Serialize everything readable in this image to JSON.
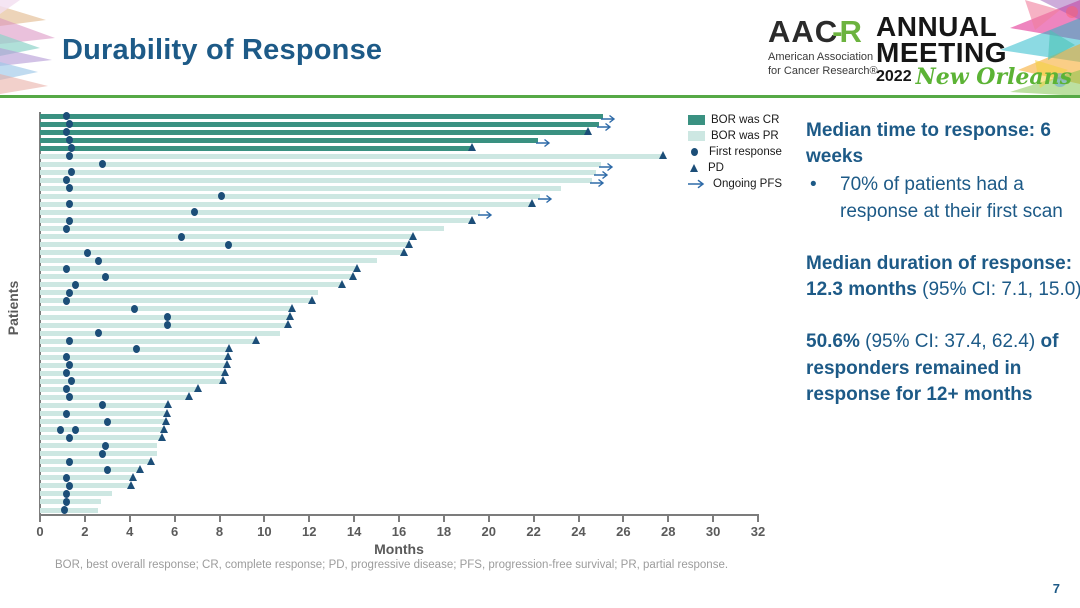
{
  "slide": {
    "title": "Durability of Response",
    "page_number": "7",
    "footnote": "BOR, best overall response; CR, complete response; PD, progressive disease; PFS, progression-free survival; PR, partial response."
  },
  "logo": {
    "aacr_black": "AAC",
    "aacr_dash": "-",
    "aacr_green": "R",
    "subtitle_line1": "American Association",
    "subtitle_line2": "for Cancer Research®",
    "annual": "ANNUAL",
    "meeting": "MEETING",
    "year": "2022",
    "city": "New Orleans"
  },
  "legend": {
    "items": [
      {
        "label": "BOR was CR",
        "marker": "swatch-cr"
      },
      {
        "label": "BOR was PR",
        "marker": "swatch-pr"
      },
      {
        "label": "First response",
        "marker": "dot"
      },
      {
        "label": "PD",
        "marker": "triangle"
      },
      {
        "label": "Ongoing PFS",
        "marker": "arrow"
      }
    ]
  },
  "stats": {
    "p1_bold": "Median time to response: 6 weeks",
    "bullet_glyph": "•",
    "bullet_text": "70% of patients had a response at their first scan",
    "p2_bold": "Median duration of response: 12.3 months ",
    "p2_normal": "(95% CI: 7.1, 15.0)",
    "p3_bold_pct": "50.6%",
    "p3_normal": " (95% CI: 37.4, 62.4) ",
    "p3_bold_rest": "of responders remained in response for 12+ months"
  },
  "chart_data": {
    "type": "bar",
    "orientation": "horizontal-swimmer",
    "title": "",
    "xlabel": "Months",
    "ylabel": "Patients",
    "xlim": [
      0,
      32
    ],
    "xticks": [
      0,
      2,
      4,
      6,
      8,
      10,
      12,
      14,
      16,
      18,
      20,
      22,
      24,
      26,
      28,
      30,
      32
    ],
    "grid": false,
    "legend_position": "top-right",
    "colors": {
      "cr_bar": "#3a9181",
      "pr_bar": "#cde7e2",
      "marker": "#1c4e78",
      "arrow": "#2f6ba8",
      "axis": "#7c7c7c"
    },
    "marker_meanings": {
      "dot": "First response",
      "pd": "PD (progressive disease)",
      "arrow": "Ongoing PFS"
    },
    "patients": [
      {
        "bor": "CR",
        "months": 25.1,
        "end": "arrow",
        "first_response": [
          1.2
        ]
      },
      {
        "bor": "CR",
        "months": 24.9,
        "end": "arrow",
        "first_response": [
          1.3
        ]
      },
      {
        "bor": "CR",
        "months": 24.4,
        "end": "pd",
        "first_response": [
          1.2
        ]
      },
      {
        "bor": "CR",
        "months": 22.2,
        "end": "arrow",
        "first_response": [
          1.3
        ]
      },
      {
        "bor": "CR",
        "months": 19.2,
        "end": "pd",
        "first_response": [
          1.4
        ]
      },
      {
        "bor": "PR",
        "months": 27.7,
        "end": "pd",
        "first_response": [
          1.3
        ]
      },
      {
        "bor": "PR",
        "months": 25.0,
        "end": "arrow",
        "first_response": [
          2.8
        ]
      },
      {
        "bor": "PR",
        "months": 24.8,
        "end": "arrow",
        "first_response": [
          1.4
        ]
      },
      {
        "bor": "PR",
        "months": 24.6,
        "end": "arrow",
        "first_response": [
          1.2
        ]
      },
      {
        "bor": "PR",
        "months": 23.2,
        "end": "none",
        "first_response": [
          1.3
        ]
      },
      {
        "bor": "PR",
        "months": 22.3,
        "end": "arrow",
        "first_response": [
          8.1
        ]
      },
      {
        "bor": "PR",
        "months": 21.9,
        "end": "pd",
        "first_response": [
          1.3
        ]
      },
      {
        "bor": "PR",
        "months": 19.6,
        "end": "arrow",
        "first_response": [
          6.9
        ]
      },
      {
        "bor": "PR",
        "months": 19.2,
        "end": "pd",
        "first_response": [
          1.3
        ]
      },
      {
        "bor": "PR",
        "months": 18.0,
        "end": "none",
        "first_response": [
          1.2
        ]
      },
      {
        "bor": "PR",
        "months": 16.6,
        "end": "pd",
        "first_response": [
          6.3
        ]
      },
      {
        "bor": "PR",
        "months": 16.4,
        "end": "pd",
        "first_response": [
          8.4
        ]
      },
      {
        "bor": "PR",
        "months": 16.2,
        "end": "pd",
        "first_response": [
          2.1
        ]
      },
      {
        "bor": "PR",
        "months": 15.0,
        "end": "none",
        "first_response": [
          2.6
        ]
      },
      {
        "bor": "PR",
        "months": 14.1,
        "end": "pd",
        "first_response": [
          1.2
        ]
      },
      {
        "bor": "PR",
        "months": 13.9,
        "end": "pd",
        "first_response": [
          2.9
        ]
      },
      {
        "bor": "PR",
        "months": 13.4,
        "end": "pd",
        "first_response": [
          1.6
        ]
      },
      {
        "bor": "PR",
        "months": 12.4,
        "end": "none",
        "first_response": [
          1.3
        ]
      },
      {
        "bor": "PR",
        "months": 12.1,
        "end": "pd",
        "first_response": [
          1.2
        ]
      },
      {
        "bor": "PR",
        "months": 11.2,
        "end": "pd",
        "first_response": [
          4.2
        ]
      },
      {
        "bor": "PR",
        "months": 11.1,
        "end": "pd",
        "first_response": [
          5.7
        ]
      },
      {
        "bor": "PR",
        "months": 11.0,
        "end": "pd",
        "first_response": [
          5.7
        ]
      },
      {
        "bor": "PR",
        "months": 10.7,
        "end": "none",
        "first_response": [
          2.6
        ]
      },
      {
        "bor": "PR",
        "months": 9.6,
        "end": "pd",
        "first_response": [
          1.3
        ]
      },
      {
        "bor": "PR",
        "months": 8.4,
        "end": "pd",
        "first_response": [
          4.3
        ]
      },
      {
        "bor": "PR",
        "months": 8.35,
        "end": "pd",
        "first_response": [
          1.2
        ]
      },
      {
        "bor": "PR",
        "months": 8.3,
        "end": "pd",
        "first_response": [
          1.3
        ]
      },
      {
        "bor": "PR",
        "months": 8.2,
        "end": "pd",
        "first_response": [
          1.2
        ]
      },
      {
        "bor": "PR",
        "months": 8.1,
        "end": "pd",
        "first_response": [
          1.4
        ]
      },
      {
        "bor": "PR",
        "months": 7.0,
        "end": "pd",
        "first_response": [
          1.2
        ]
      },
      {
        "bor": "PR",
        "months": 6.6,
        "end": "pd",
        "first_response": [
          1.3
        ]
      },
      {
        "bor": "PR",
        "months": 5.65,
        "end": "pd",
        "first_response": [
          2.8
        ]
      },
      {
        "bor": "PR",
        "months": 5.6,
        "end": "pd",
        "first_response": [
          1.2
        ]
      },
      {
        "bor": "PR",
        "months": 5.55,
        "end": "pd",
        "first_response": [
          3.0
        ]
      },
      {
        "bor": "PR",
        "months": 5.5,
        "end": "pd",
        "first_response": [
          0.9,
          1.6
        ]
      },
      {
        "bor": "PR",
        "months": 5.4,
        "end": "pd",
        "first_response": [
          1.3
        ]
      },
      {
        "bor": "PR",
        "months": 5.2,
        "end": "none",
        "first_response": [
          2.9
        ]
      },
      {
        "bor": "PR",
        "months": 5.2,
        "end": "none",
        "first_response": [
          2.8
        ]
      },
      {
        "bor": "PR",
        "months": 4.9,
        "end": "pd",
        "first_response": [
          1.3
        ]
      },
      {
        "bor": "PR",
        "months": 4.4,
        "end": "pd",
        "first_response": [
          3.0
        ]
      },
      {
        "bor": "PR",
        "months": 4.1,
        "end": "pd",
        "first_response": [
          1.2
        ]
      },
      {
        "bor": "PR",
        "months": 4.0,
        "end": "pd",
        "first_response": [
          1.3
        ]
      },
      {
        "bor": "PR",
        "months": 3.2,
        "end": "none",
        "first_response": [
          1.2
        ]
      },
      {
        "bor": "PR",
        "months": 2.7,
        "end": "none",
        "first_response": [
          1.2
        ]
      },
      {
        "bor": "PR",
        "months": 2.6,
        "end": "none",
        "first_response": [
          1.1
        ]
      }
    ]
  }
}
